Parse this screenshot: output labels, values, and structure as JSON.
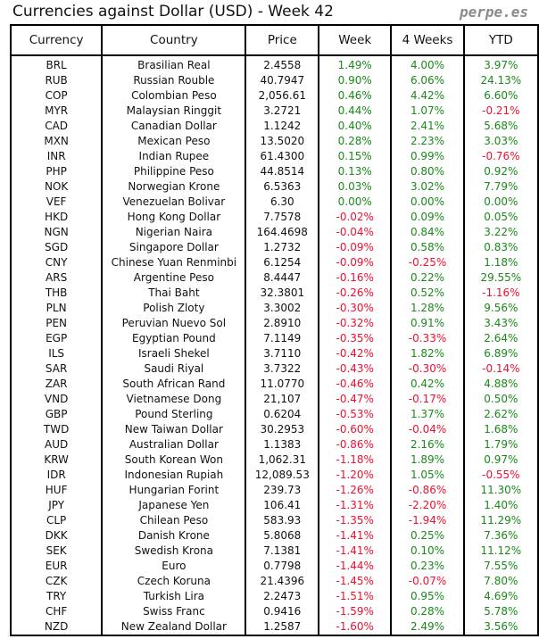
{
  "title": "Currencies against Dollar (USD) - Week 42",
  "brand": "perpe.es",
  "colors": {
    "positive": "#1a8a1a",
    "negative": "#f01030"
  },
  "columns": [
    "Currency",
    "Country",
    "Price",
    "Week",
    "4 Weeks",
    "YTD"
  ],
  "rows": [
    [
      "BRL",
      "Brasilian Real",
      "2.4558",
      "1.49%",
      "4.00%",
      "3.97%"
    ],
    [
      "RUB",
      "Russian Rouble",
      "40.7947",
      "0.90%",
      "6.06%",
      "24.13%"
    ],
    [
      "COP",
      "Colombian Peso",
      "2,056.61",
      "0.46%",
      "4.42%",
      "6.60%"
    ],
    [
      "MYR",
      "Malaysian Ringgit",
      "3.2721",
      "0.44%",
      "1.07%",
      "-0.21%"
    ],
    [
      "CAD",
      "Canadian Dollar",
      "1.1242",
      "0.40%",
      "2.41%",
      "5.68%"
    ],
    [
      "MXN",
      "Mexican Peso",
      "13.5020",
      "0.28%",
      "2.23%",
      "3.03%"
    ],
    [
      "INR",
      "Indian Rupee",
      "61.4300",
      "0.15%",
      "0.99%",
      "-0.76%"
    ],
    [
      "PHP",
      "Philippine Peso",
      "44.8514",
      "0.13%",
      "0.80%",
      "0.92%"
    ],
    [
      "NOK",
      "Norwegian Krone",
      "6.5363",
      "0.03%",
      "3.02%",
      "7.79%"
    ],
    [
      "VEF",
      "Venezuelan Bolivar",
      "6.30",
      "0.00%",
      "0.00%",
      "0.00%"
    ],
    [
      "HKD",
      "Hong Kong Dollar",
      "7.7578",
      "-0.02%",
      "0.09%",
      "0.05%"
    ],
    [
      "NGN",
      "Nigerian Naira",
      "164.4698",
      "-0.04%",
      "0.84%",
      "3.22%"
    ],
    [
      "SGD",
      "Singapore Dollar",
      "1.2732",
      "-0.09%",
      "0.58%",
      "0.83%"
    ],
    [
      "CNY",
      "Chinese Yuan Renminbi",
      "6.1254",
      "-0.09%",
      "-0.25%",
      "1.18%"
    ],
    [
      "ARS",
      "Argentine Peso",
      "8.4447",
      "-0.16%",
      "0.22%",
      "29.55%"
    ],
    [
      "THB",
      "Thai Baht",
      "32.3801",
      "-0.26%",
      "0.52%",
      "-1.16%"
    ],
    [
      "PLN",
      "Polish Zloty",
      "3.3002",
      "-0.30%",
      "1.28%",
      "9.56%"
    ],
    [
      "PEN",
      "Peruvian Nuevo Sol",
      "2.8910",
      "-0.32%",
      "0.91%",
      "3.43%"
    ],
    [
      "EGP",
      "Egyptian Pound",
      "7.1149",
      "-0.35%",
      "-0.33%",
      "2.64%"
    ],
    [
      "ILS",
      "Israeli Shekel",
      "3.7110",
      "-0.42%",
      "1.82%",
      "6.89%"
    ],
    [
      "SAR",
      "Saudi Riyal",
      "3.7322",
      "-0.43%",
      "-0.30%",
      "-0.14%"
    ],
    [
      "ZAR",
      "South African Rand",
      "11.0770",
      "-0.46%",
      "0.42%",
      "4.88%"
    ],
    [
      "VND",
      "Vietnamese Dong",
      "21,107",
      "-0.47%",
      "-0.17%",
      "0.50%"
    ],
    [
      "GBP",
      "Pound Sterling",
      "0.6204",
      "-0.53%",
      "1.37%",
      "2.62%"
    ],
    [
      "TWD",
      "New Taiwan Dollar",
      "30.2953",
      "-0.60%",
      "-0.04%",
      "1.68%"
    ],
    [
      "AUD",
      "Australian Dollar",
      "1.1383",
      "-0.86%",
      "2.16%",
      "1.79%"
    ],
    [
      "KRW",
      "South Korean Won",
      "1,062.31",
      "-1.18%",
      "1.89%",
      "0.97%"
    ],
    [
      "IDR",
      "Indonesian Rupiah",
      "12,089.53",
      "-1.20%",
      "1.05%",
      "-0.55%"
    ],
    [
      "HUF",
      "Hungarian Forint",
      "239.73",
      "-1.26%",
      "-0.86%",
      "11.30%"
    ],
    [
      "JPY",
      "Japanese Yen",
      "106.41",
      "-1.31%",
      "-2.20%",
      "1.40%"
    ],
    [
      "CLP",
      "Chilean Peso",
      "583.93",
      "-1.35%",
      "-1.94%",
      "11.29%"
    ],
    [
      "DKK",
      "Danish Krone",
      "5.8068",
      "-1.41%",
      "0.25%",
      "7.36%"
    ],
    [
      "SEK",
      "Swedish Krona",
      "7.1381",
      "-1.41%",
      "0.10%",
      "11.12%"
    ],
    [
      "EUR",
      "Euro",
      "0.7798",
      "-1.44%",
      "0.23%",
      "7.55%"
    ],
    [
      "CZK",
      "Czech Koruna",
      "21.4396",
      "-1.45%",
      "-0.07%",
      "7.80%"
    ],
    [
      "TRY",
      "Turkish Lira",
      "2.2473",
      "-1.51%",
      "0.95%",
      "4.69%"
    ],
    [
      "CHF",
      "Swiss Franc",
      "0.9416",
      "-1.59%",
      "0.28%",
      "5.78%"
    ],
    [
      "NZD",
      "New Zealand Dollar",
      "1.2587",
      "-1.60%",
      "2.49%",
      "3.56%"
    ]
  ]
}
